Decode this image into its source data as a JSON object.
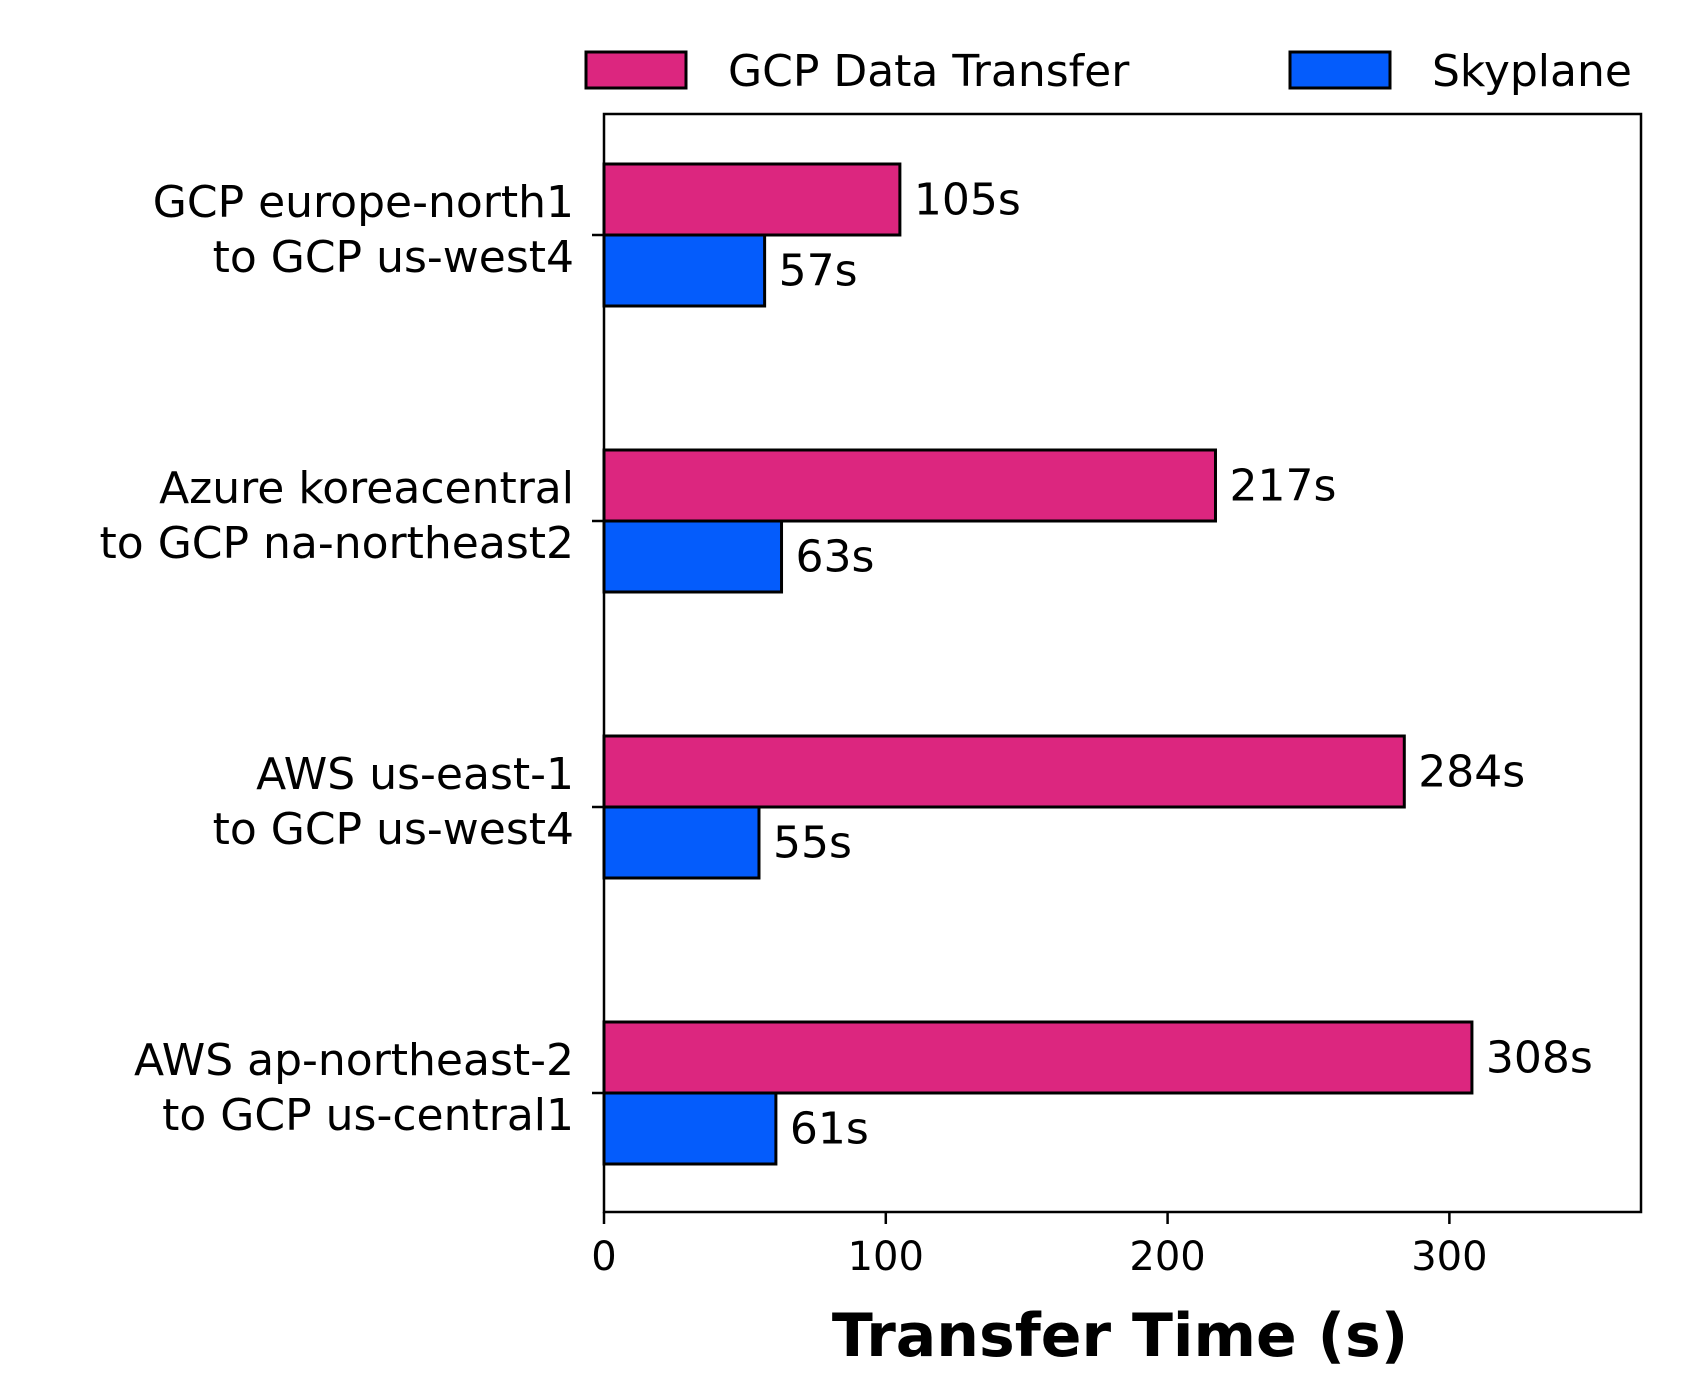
{
  "chart_data": {
    "type": "bar",
    "orientation": "horizontal",
    "categories": [
      [
        "GCP europe-north1",
        "to GCP us-west4"
      ],
      [
        "Azure koreacentral",
        "to GCP na-northeast2"
      ],
      [
        "AWS us-east-1",
        "to GCP us-west4"
      ],
      [
        "AWS ap-northeast-2",
        "to GCP us-central1"
      ]
    ],
    "series": [
      {
        "name": "GCP Data Transfer",
        "color": "#DC267F",
        "values": [
          105,
          217,
          284,
          308
        ],
        "labels": [
          "105s",
          "217s",
          "284s",
          "308s"
        ]
      },
      {
        "name": "Skyplane",
        "color": "#045CFC",
        "values": [
          57,
          63,
          55,
          61
        ],
        "labels": [
          "57s",
          "63s",
          "55s",
          "61s"
        ]
      }
    ],
    "title": "",
    "xlabel": "Transfer Time (s)",
    "ylabel": "",
    "xlim": [
      0,
      368
    ],
    "xticks": [
      0,
      100,
      200,
      300
    ],
    "xtick_labels": [
      "0",
      "100",
      "200",
      "300"
    ],
    "grid": false,
    "legend_position": "top"
  }
}
